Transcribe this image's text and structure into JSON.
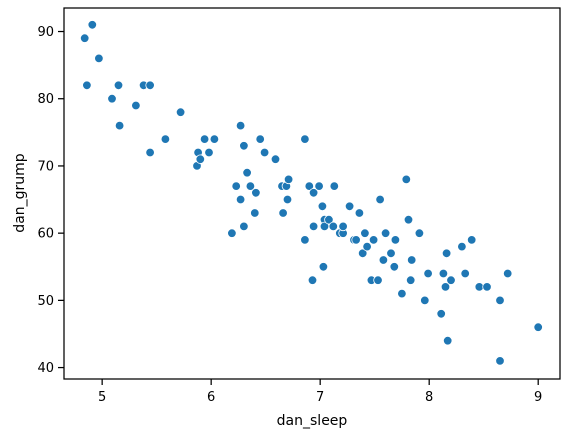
{
  "chart_data": {
    "type": "scatter",
    "xlabel": "dan_sleep",
    "ylabel": "dan_grump",
    "xlim": [
      4.65,
      9.2
    ],
    "ylim": [
      38.3,
      93.5
    ],
    "xticks": [
      5,
      6,
      7,
      8,
      9
    ],
    "yticks": [
      40,
      50,
      60,
      70,
      80,
      90
    ],
    "grid": false,
    "colors": {
      "point": "#1f77b4",
      "point_edge": "#ffffff",
      "axis": "#000000"
    },
    "points": [
      {
        "x": 4.84,
        "y": 89
      },
      {
        "x": 4.91,
        "y": 91
      },
      {
        "x": 4.97,
        "y": 86
      },
      {
        "x": 4.86,
        "y": 82
      },
      {
        "x": 5.09,
        "y": 80
      },
      {
        "x": 5.15,
        "y": 82
      },
      {
        "x": 5.16,
        "y": 76
      },
      {
        "x": 5.31,
        "y": 79
      },
      {
        "x": 5.38,
        "y": 82
      },
      {
        "x": 5.44,
        "y": 82
      },
      {
        "x": 5.44,
        "y": 72
      },
      {
        "x": 5.58,
        "y": 74
      },
      {
        "x": 5.72,
        "y": 78
      },
      {
        "x": 5.87,
        "y": 70
      },
      {
        "x": 5.88,
        "y": 72
      },
      {
        "x": 5.9,
        "y": 71
      },
      {
        "x": 5.94,
        "y": 74
      },
      {
        "x": 5.98,
        "y": 72
      },
      {
        "x": 6.03,
        "y": 74
      },
      {
        "x": 6.19,
        "y": 60
      },
      {
        "x": 6.23,
        "y": 67
      },
      {
        "x": 6.27,
        "y": 76
      },
      {
        "x": 6.27,
        "y": 65
      },
      {
        "x": 6.3,
        "y": 73
      },
      {
        "x": 6.3,
        "y": 61
      },
      {
        "x": 6.33,
        "y": 69
      },
      {
        "x": 6.36,
        "y": 67
      },
      {
        "x": 6.4,
        "y": 63
      },
      {
        "x": 6.41,
        "y": 66
      },
      {
        "x": 6.45,
        "y": 74
      },
      {
        "x": 6.49,
        "y": 72
      },
      {
        "x": 6.59,
        "y": 71
      },
      {
        "x": 6.65,
        "y": 67
      },
      {
        "x": 6.66,
        "y": 63
      },
      {
        "x": 6.69,
        "y": 67
      },
      {
        "x": 6.7,
        "y": 65
      },
      {
        "x": 6.71,
        "y": 68
      },
      {
        "x": 6.86,
        "y": 74
      },
      {
        "x": 6.86,
        "y": 59
      },
      {
        "x": 6.9,
        "y": 67
      },
      {
        "x": 6.93,
        "y": 53
      },
      {
        "x": 6.94,
        "y": 61
      },
      {
        "x": 6.94,
        "y": 66
      },
      {
        "x": 6.99,
        "y": 67
      },
      {
        "x": 7.02,
        "y": 64
      },
      {
        "x": 7.03,
        "y": 55
      },
      {
        "x": 7.04,
        "y": 62
      },
      {
        "x": 7.04,
        "y": 61
      },
      {
        "x": 7.08,
        "y": 62
      },
      {
        "x": 7.12,
        "y": 61
      },
      {
        "x": 7.13,
        "y": 67
      },
      {
        "x": 7.18,
        "y": 60
      },
      {
        "x": 7.21,
        "y": 60
      },
      {
        "x": 7.21,
        "y": 61
      },
      {
        "x": 7.27,
        "y": 64
      },
      {
        "x": 7.31,
        "y": 59
      },
      {
        "x": 7.33,
        "y": 59
      },
      {
        "x": 7.36,
        "y": 63
      },
      {
        "x": 7.39,
        "y": 57
      },
      {
        "x": 7.41,
        "y": 60
      },
      {
        "x": 7.43,
        "y": 58
      },
      {
        "x": 7.47,
        "y": 53
      },
      {
        "x": 7.49,
        "y": 59
      },
      {
        "x": 7.53,
        "y": 53
      },
      {
        "x": 7.55,
        "y": 65
      },
      {
        "x": 7.58,
        "y": 56
      },
      {
        "x": 7.6,
        "y": 60
      },
      {
        "x": 7.65,
        "y": 57
      },
      {
        "x": 7.69,
        "y": 59
      },
      {
        "x": 7.68,
        "y": 55
      },
      {
        "x": 7.75,
        "y": 51
      },
      {
        "x": 7.79,
        "y": 68
      },
      {
        "x": 7.81,
        "y": 62
      },
      {
        "x": 7.83,
        "y": 53
      },
      {
        "x": 7.84,
        "y": 56
      },
      {
        "x": 7.91,
        "y": 60
      },
      {
        "x": 7.96,
        "y": 50
      },
      {
        "x": 7.99,
        "y": 54
      },
      {
        "x": 8.11,
        "y": 48
      },
      {
        "x": 8.13,
        "y": 54
      },
      {
        "x": 8.15,
        "y": 52
      },
      {
        "x": 8.16,
        "y": 57
      },
      {
        "x": 8.17,
        "y": 44
      },
      {
        "x": 8.2,
        "y": 53
      },
      {
        "x": 8.3,
        "y": 58
      },
      {
        "x": 8.33,
        "y": 54
      },
      {
        "x": 8.39,
        "y": 59
      },
      {
        "x": 8.46,
        "y": 52
      },
      {
        "x": 8.53,
        "y": 52
      },
      {
        "x": 8.65,
        "y": 50
      },
      {
        "x": 8.65,
        "y": 41
      },
      {
        "x": 8.72,
        "y": 54
      },
      {
        "x": 9.0,
        "y": 46
      }
    ]
  }
}
